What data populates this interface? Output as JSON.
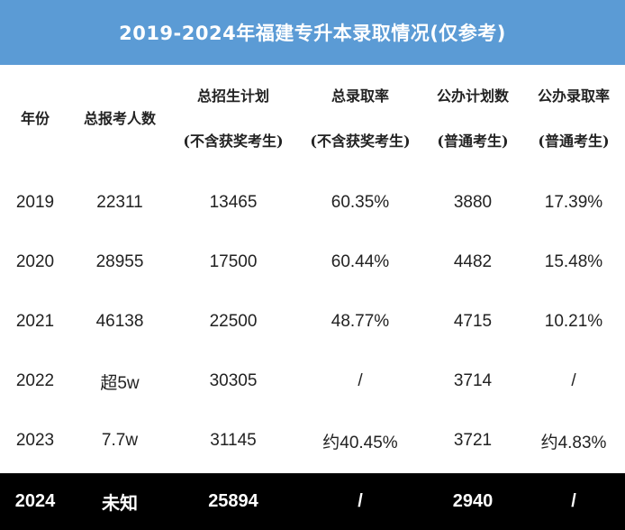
{
  "title": "2019-2024年福建专升本录取情况(仅参考)",
  "headers": [
    {
      "line1": "年份",
      "line2": ""
    },
    {
      "line1": "总报考人数",
      "line2": ""
    },
    {
      "line1": "总招生计划",
      "line2": "(不含获奖考生)"
    },
    {
      "line1": "总录取率",
      "line2": "(不含获奖考生)"
    },
    {
      "line1": "公办计划数",
      "line2": "(普通考生)"
    },
    {
      "line1": "公办录取率",
      "line2": "(普通考生)"
    }
  ],
  "rows": [
    {
      "year": "2019",
      "applicants": "22311",
      "plan": "13465",
      "rate": "60.35%",
      "public_plan": "3880",
      "public_rate": "17.39%"
    },
    {
      "year": "2020",
      "applicants": "28955",
      "plan": "17500",
      "rate": "60.44%",
      "public_plan": "4482",
      "public_rate": "15.48%"
    },
    {
      "year": "2021",
      "applicants": "46138",
      "plan": "22500",
      "rate": "48.77%",
      "public_plan": "4715",
      "public_rate": "10.21%"
    },
    {
      "year": "2022",
      "applicants": "超5w",
      "plan": "30305",
      "rate": "/",
      "public_plan": "3714",
      "public_rate": "/"
    },
    {
      "year": "2023",
      "applicants": "7.7w",
      "plan": "31145",
      "rate": "约40.45%",
      "public_plan": "3721",
      "public_rate": "约4.83%"
    }
  ],
  "footer": {
    "year": "2024",
    "applicants": "未知",
    "plan": "25894",
    "rate": "/",
    "public_plan": "2940",
    "public_rate": "/"
  },
  "colors": {
    "title_bg": "#5b9bd5",
    "title_text": "#ffffff",
    "footer_bg": "#000000",
    "footer_text": "#ffffff"
  }
}
